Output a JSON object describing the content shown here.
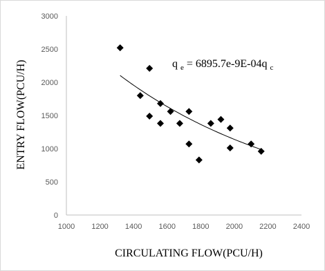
{
  "chart_data": {
    "type": "scatter",
    "xlabel": "CIRCULATING FLOW(PCU/H)",
    "ylabel": "ENTRY  FLOW(PCU/H)",
    "xlim": [
      1000,
      2400
    ],
    "ylim": [
      0,
      3000
    ],
    "xticks": [
      1000,
      1200,
      1400,
      1600,
      1800,
      2000,
      2200,
      2400
    ],
    "yticks": [
      0,
      500,
      1000,
      1500,
      2000,
      2500,
      3000
    ],
    "grid": false,
    "marker": "diamond",
    "color": "#000000",
    "points": [
      {
        "x": 1320,
        "y": 2520
      },
      {
        "x": 1440,
        "y": 1800
      },
      {
        "x": 1495,
        "y": 2210
      },
      {
        "x": 1495,
        "y": 1490
      },
      {
        "x": 1560,
        "y": 1680
      },
      {
        "x": 1560,
        "y": 1380
      },
      {
        "x": 1620,
        "y": 1560
      },
      {
        "x": 1675,
        "y": 1380
      },
      {
        "x": 1730,
        "y": 1560
      },
      {
        "x": 1730,
        "y": 1070
      },
      {
        "x": 1790,
        "y": 830
      },
      {
        "x": 1860,
        "y": 1380
      },
      {
        "x": 1920,
        "y": 1440
      },
      {
        "x": 1975,
        "y": 1310
      },
      {
        "x": 1975,
        "y": 1010
      },
      {
        "x": 2100,
        "y": 1070
      },
      {
        "x": 2160,
        "y": 960
      }
    ],
    "trendline": {
      "type": "exponential",
      "a": 6895.7,
      "b": -0.0009,
      "x_range": [
        1320,
        2160
      ],
      "equation": {
        "lhs_main": "q",
        "lhs_sub": "e",
        "rhs_main": " = 6895.7e-9E-04q",
        "rhs_sub": "c"
      }
    }
  }
}
